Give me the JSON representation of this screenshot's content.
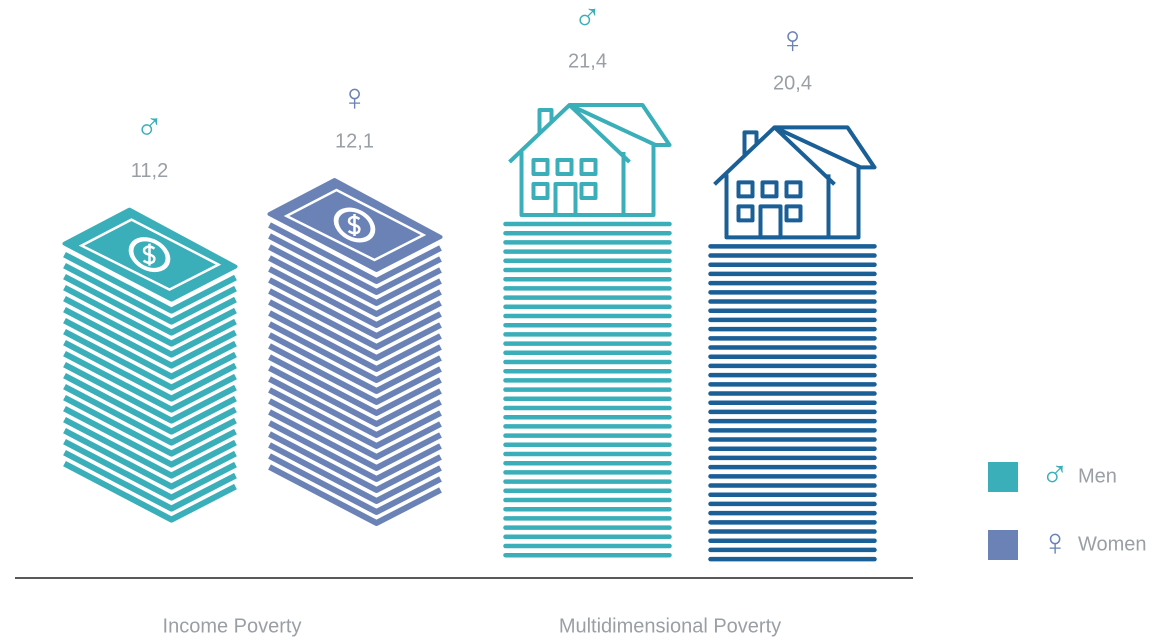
{
  "chart_data": {
    "type": "bar",
    "categories": [
      "Income Poverty",
      "Multidimensional Poverty"
    ],
    "series": [
      {
        "name": "Men",
        "symbol": "♂",
        "color": "#3aafb9",
        "values": [
          11.2,
          21.4
        ],
        "value_labels": [
          "11,2",
          "21,4"
        ]
      },
      {
        "name": "Women",
        "symbol": "♀",
        "color": "#6a82b5",
        "colors": [
          "#6a82b5",
          "#1b5f97"
        ],
        "values": [
          12.1,
          20.4
        ],
        "value_labels": [
          "12,1",
          "20,4"
        ]
      }
    ],
    "legend": "right"
  }
}
